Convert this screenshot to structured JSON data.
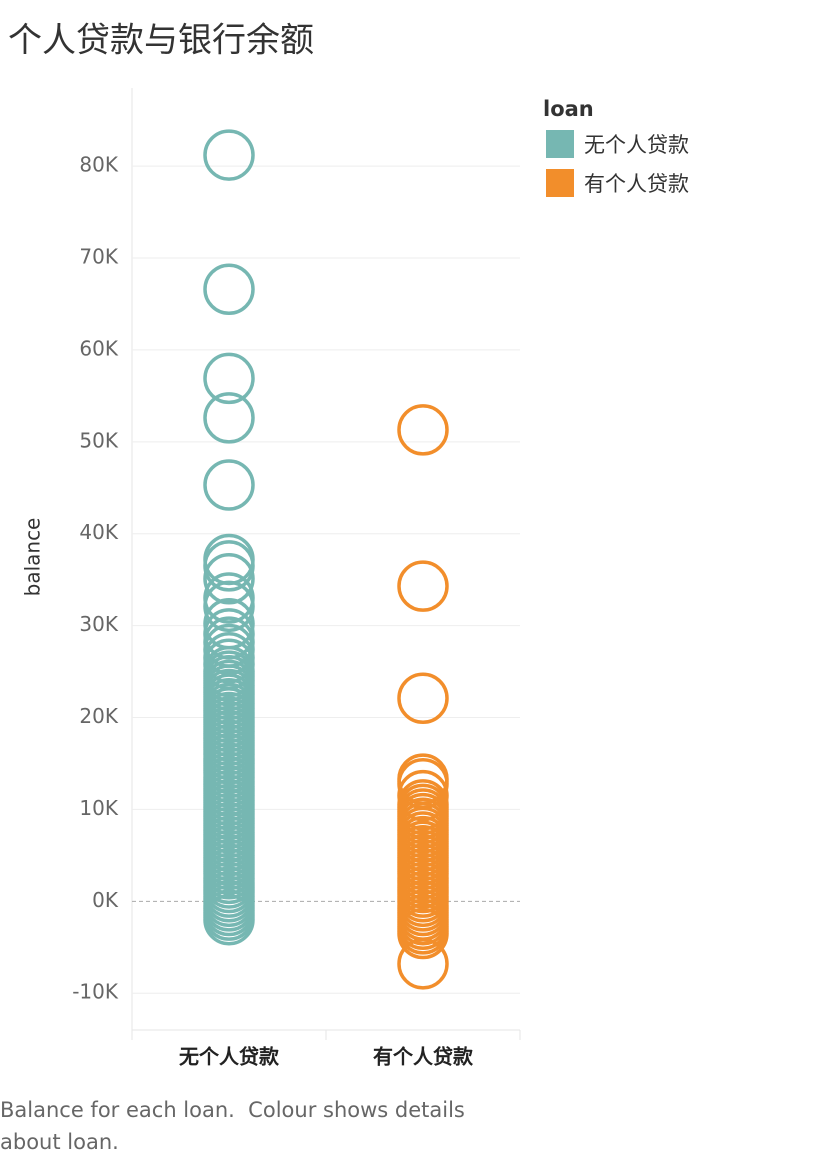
{
  "chart_data": {
    "type": "strip",
    "title": "个人贷款与银行余额",
    "y_label": "balance",
    "legend_title": "loan",
    "caption": "Balance for each loan.  Colour shows details about loan.",
    "categories": [
      "无个人贷款",
      "有个人贷款"
    ],
    "ylim": [
      -14000,
      88500
    ],
    "yticks": [
      {
        "value": -10000,
        "label": "-10K"
      },
      {
        "value": 0,
        "label": "0K"
      },
      {
        "value": 10000,
        "label": "10K"
      },
      {
        "value": 20000,
        "label": "20K"
      },
      {
        "value": 30000,
        "label": "30K"
      },
      {
        "value": 40000,
        "label": "40K"
      },
      {
        "value": 50000,
        "label": "50K"
      },
      {
        "value": 60000,
        "label": "60K"
      },
      {
        "value": 70000,
        "label": "70K"
      },
      {
        "value": 80000,
        "label": "80K"
      }
    ],
    "grid": true,
    "series": [
      {
        "name": "无个人贷款",
        "color": "#76b7b2",
        "values": [
          81200,
          66600,
          56900,
          52600,
          45300,
          37200,
          36500,
          35100,
          33000,
          32100,
          30200,
          29100,
          28200,
          27400,
          26500,
          25800,
          25000,
          24500,
          24000,
          23500,
          23000,
          22500,
          22000,
          21500,
          21000,
          20500,
          20000,
          19500,
          19000,
          18500,
          18000,
          17500,
          17000,
          16500,
          16000,
          15500,
          15000,
          14500,
          14000,
          13500,
          13000,
          12500,
          12000,
          11500,
          11000,
          10500,
          10000,
          9500,
          9000,
          8500,
          8000,
          7500,
          7000,
          6500,
          6000,
          5500,
          5000,
          4500,
          4000,
          3500,
          3000,
          2500,
          2000,
          1500,
          1000,
          500,
          0,
          -500,
          -1000,
          -1500,
          -2000
        ]
      },
      {
        "name": "有个人贷款",
        "color": "#f28e2b",
        "values": [
          51300,
          34300,
          22100,
          13300,
          12800,
          11500,
          10500,
          -6800,
          10000,
          9500,
          9000,
          8500,
          8000,
          7500,
          7000,
          6500,
          6000,
          5500,
          5000,
          4500,
          4000,
          3500,
          3000,
          2500,
          2000,
          1500,
          1000,
          500,
          0,
          -500,
          -1000,
          -1500,
          -2000,
          -2500,
          -3000,
          -3500
        ]
      }
    ]
  }
}
